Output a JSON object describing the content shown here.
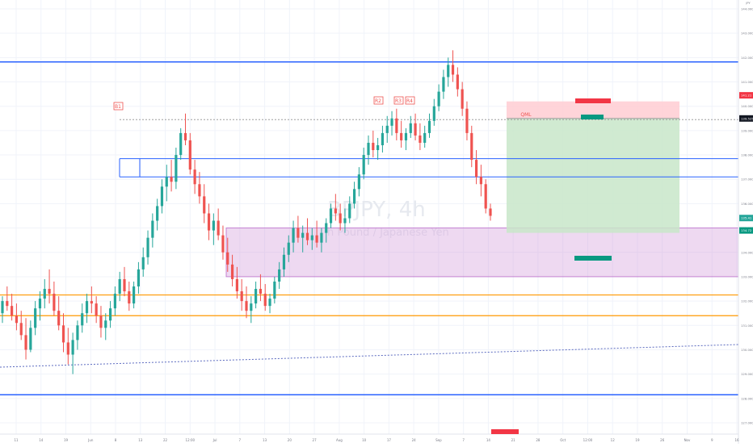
{
  "chart_data": {
    "type": "candlestick",
    "watermark": {
      "symbol": "BPJPY, 4h",
      "description": "h Pound / Japanese Yen"
    },
    "currency": "JPY",
    "y_ticks": [
      144.0,
      143.0,
      142.0,
      141.0,
      140.0,
      139.0,
      138.0,
      137.0,
      136.0,
      135.0,
      134.0,
      133.0,
      132.0,
      131.0,
      130.0,
      129.0,
      128.0,
      127.0
    ],
    "x_ticks": [
      "11",
      "14",
      "19",
      "Jun",
      "8",
      "13",
      "22",
      "12:00",
      "Jul",
      "7",
      "13",
      "20",
      "27",
      "Aug",
      "10",
      "17",
      "24",
      "Sep",
      "7",
      "14",
      "21",
      "28",
      "Oct",
      "12:00",
      "12",
      "19",
      "26",
      "Nov",
      "9",
      "16"
    ],
    "price_scale_labels": [
      "141.21",
      "139.525",
      "135.41",
      "134.72"
    ],
    "pattern_labels": [
      "B1",
      "R2",
      "R3",
      "R4"
    ],
    "level_label": "QML",
    "position_labels": {
      "stop": "",
      "entry": "",
      "target": ""
    },
    "bottom_marker": "",
    "colors": {
      "up": "#26a69a",
      "down": "#ef5350",
      "support_line": "#2962ff",
      "orange_line": "#ff9800",
      "zone": "#ce93d8",
      "long_profit": "#c8e6c9",
      "long_loss": "#ffcdd2"
    },
    "candles": [
      [
        131.5,
        132.2,
        131.1,
        132.0
      ],
      [
        132.0,
        132.6,
        131.6,
        131.8
      ],
      [
        131.8,
        132.3,
        131.2,
        131.4
      ],
      [
        131.4,
        131.9,
        130.8,
        131.1
      ],
      [
        131.1,
        131.6,
        130.4,
        130.6
      ],
      [
        130.6,
        131.3,
        129.6,
        130.0
      ],
      [
        130.0,
        131.2,
        129.9,
        130.9
      ],
      [
        130.9,
        132.0,
        130.6,
        131.7
      ],
      [
        131.7,
        132.4,
        131.2,
        132.1
      ],
      [
        132.1,
        132.9,
        131.7,
        132.5
      ],
      [
        132.5,
        133.3,
        131.9,
        132.3
      ],
      [
        132.3,
        132.8,
        131.4,
        131.6
      ],
      [
        131.6,
        132.2,
        130.8,
        131.0
      ],
      [
        131.0,
        131.5,
        129.9,
        130.3
      ],
      [
        130.3,
        130.9,
        129.4,
        129.8
      ],
      [
        129.8,
        130.7,
        129.0,
        130.4
      ],
      [
        130.4,
        131.2,
        130.0,
        131.0
      ],
      [
        131.0,
        131.9,
        130.7,
        131.5
      ],
      [
        131.5,
        132.3,
        131.1,
        132.0
      ],
      [
        132.0,
        132.6,
        131.5,
        131.9
      ],
      [
        131.9,
        132.2,
        131.1,
        131.4
      ],
      [
        131.4,
        131.8,
        130.5,
        130.9
      ],
      [
        130.9,
        131.5,
        130.4,
        131.2
      ],
      [
        131.2,
        132.0,
        130.9,
        131.7
      ],
      [
        131.7,
        132.6,
        131.4,
        132.3
      ],
      [
        132.3,
        133.2,
        132.0,
        132.9
      ],
      [
        132.9,
        133.4,
        132.2,
        132.4
      ],
      [
        132.4,
        132.8,
        131.6,
        131.9
      ],
      [
        131.9,
        132.8,
        131.7,
        132.6
      ],
      [
        132.6,
        133.6,
        132.3,
        133.3
      ],
      [
        133.3,
        134.2,
        133.0,
        133.8
      ],
      [
        133.8,
        134.9,
        133.5,
        134.6
      ],
      [
        134.6,
        135.6,
        134.2,
        135.3
      ],
      [
        135.3,
        136.2,
        134.9,
        135.9
      ],
      [
        135.9,
        137.0,
        135.6,
        136.7
      ],
      [
        136.7,
        137.6,
        136.1,
        137.1
      ],
      [
        137.1,
        137.8,
        136.5,
        136.9
      ],
      [
        136.9,
        138.3,
        136.6,
        138.0
      ],
      [
        138.0,
        139.1,
        137.8,
        138.9
      ],
      [
        138.9,
        139.7,
        138.4,
        138.6
      ],
      [
        138.6,
        138.9,
        137.2,
        137.4
      ],
      [
        137.4,
        137.8,
        136.4,
        136.8
      ],
      [
        136.8,
        137.3,
        136.0,
        136.3
      ],
      [
        136.3,
        136.8,
        135.2,
        135.6
      ],
      [
        135.6,
        136.0,
        134.5,
        134.9
      ],
      [
        134.9,
        135.6,
        134.3,
        135.3
      ],
      [
        135.3,
        135.8,
        134.5,
        134.7
      ],
      [
        134.7,
        135.1,
        133.7,
        134.0
      ],
      [
        134.0,
        134.6,
        133.2,
        133.5
      ],
      [
        133.5,
        133.9,
        132.6,
        132.9
      ],
      [
        132.9,
        133.4,
        132.1,
        132.4
      ],
      [
        132.4,
        132.9,
        131.6,
        132.0
      ],
      [
        132.0,
        132.6,
        131.3,
        131.6
      ],
      [
        131.6,
        132.2,
        131.1,
        131.9
      ],
      [
        131.9,
        132.8,
        131.7,
        132.5
      ],
      [
        132.5,
        133.1,
        132.0,
        132.3
      ],
      [
        132.3,
        132.7,
        131.6,
        131.8
      ],
      [
        131.8,
        132.3,
        131.5,
        132.1
      ],
      [
        132.1,
        133.0,
        131.9,
        132.8
      ],
      [
        132.8,
        133.6,
        132.5,
        133.3
      ],
      [
        133.3,
        134.2,
        133.0,
        133.9
      ],
      [
        133.9,
        134.7,
        133.6,
        134.4
      ],
      [
        134.4,
        135.3,
        134.0,
        135.0
      ],
      [
        135.0,
        135.5,
        134.4,
        134.6
      ],
      [
        134.6,
        135.1,
        134.0,
        134.8
      ],
      [
        134.8,
        135.4,
        134.3,
        134.5
      ],
      [
        134.5,
        135.0,
        134.1,
        134.7
      ],
      [
        134.7,
        135.3,
        134.2,
        134.4
      ],
      [
        134.4,
        135.0,
        134.0,
        134.8
      ],
      [
        134.8,
        135.4,
        134.4,
        135.2
      ],
      [
        135.2,
        136.0,
        135.0,
        135.8
      ],
      [
        135.8,
        136.4,
        135.3,
        135.6
      ],
      [
        135.6,
        136.0,
        134.9,
        135.2
      ],
      [
        135.2,
        135.8,
        134.8,
        135.4
      ],
      [
        135.4,
        136.3,
        135.2,
        136.0
      ],
      [
        136.0,
        136.9,
        135.8,
        136.6
      ],
      [
        136.6,
        137.5,
        136.3,
        137.2
      ],
      [
        137.2,
        138.3,
        137.0,
        138.0
      ],
      [
        138.0,
        138.8,
        137.6,
        138.5
      ],
      [
        138.5,
        139.0,
        137.9,
        138.2
      ],
      [
        138.2,
        138.7,
        137.8,
        138.4
      ],
      [
        138.4,
        139.2,
        138.1,
        138.9
      ],
      [
        138.9,
        139.6,
        138.5,
        139.2
      ],
      [
        139.2,
        139.8,
        138.8,
        139.5
      ],
      [
        139.5,
        139.9,
        138.6,
        138.9
      ],
      [
        138.9,
        139.4,
        138.3,
        138.6
      ],
      [
        138.6,
        139.1,
        138.2,
        138.9
      ],
      [
        138.9,
        139.6,
        138.7,
        139.3
      ],
      [
        139.3,
        139.7,
        138.6,
        138.8
      ],
      [
        138.8,
        139.3,
        138.2,
        138.5
      ],
      [
        138.5,
        139.2,
        138.3,
        138.9
      ],
      [
        138.9,
        139.7,
        138.7,
        139.4
      ],
      [
        139.4,
        140.3,
        139.2,
        140.0
      ],
      [
        140.0,
        140.9,
        139.8,
        140.6
      ],
      [
        140.6,
        141.5,
        140.3,
        141.2
      ],
      [
        141.2,
        142.0,
        140.8,
        141.7
      ],
      [
        141.7,
        142.3,
        141.0,
        141.3
      ],
      [
        141.3,
        141.6,
        140.4,
        140.7
      ],
      [
        140.7,
        141.0,
        139.6,
        139.9
      ],
      [
        139.9,
        140.2,
        138.6,
        138.9
      ],
      [
        138.9,
        139.2,
        137.5,
        137.8
      ],
      [
        137.8,
        138.2,
        136.8,
        137.1
      ],
      [
        137.1,
        137.6,
        136.3,
        136.8
      ],
      [
        136.8,
        137.0,
        135.6,
        135.8
      ],
      [
        135.8,
        136.0,
        135.3,
        135.5
      ]
    ]
  }
}
